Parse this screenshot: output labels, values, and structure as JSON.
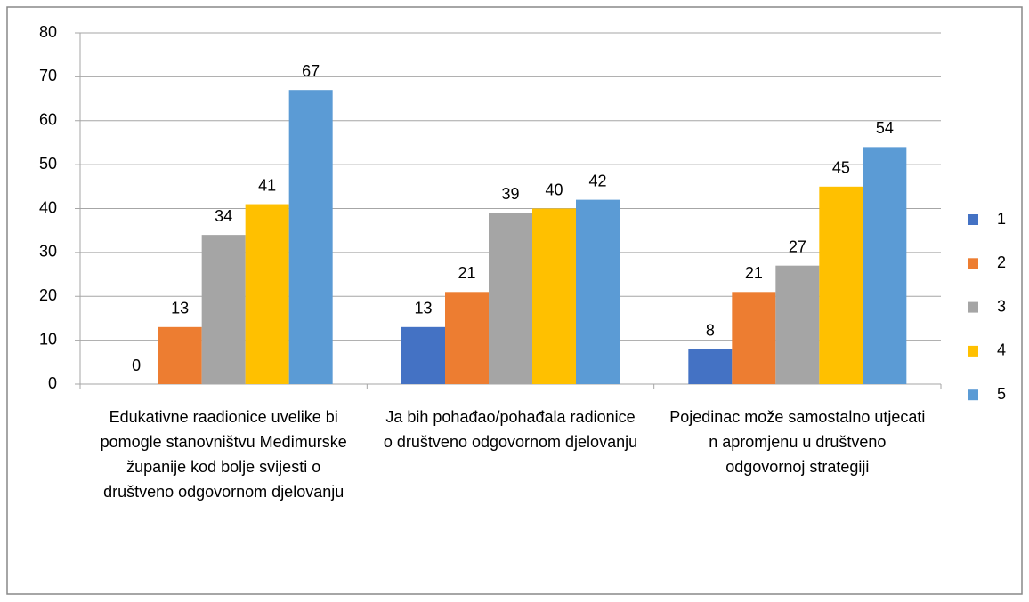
{
  "chart_data": {
    "type": "bar",
    "categories": [
      "Edukativne raadionice uvelike bi pomogle stanovništvu Međimurske županije kod bolje svijesti o društveno odgovornom djelovanju",
      "Ja bih pohađao/pohađala radionice o društveno odgovornom djelovanju",
      "Pojedinac može samostalno utjecati n apromjenu u društveno odgovornoj strategiji"
    ],
    "series": [
      {
        "name": "1",
        "color": "#4472c4",
        "values": [
          0,
          13,
          8
        ]
      },
      {
        "name": "2",
        "color": "#ed7d31",
        "values": [
          13,
          21,
          21
        ]
      },
      {
        "name": "3",
        "color": "#a5a5a5",
        "values": [
          34,
          39,
          27
        ]
      },
      {
        "name": "4",
        "color": "#ffc000",
        "values": [
          41,
          40,
          45
        ]
      },
      {
        "name": "5",
        "color": "#5b9bd5",
        "values": [
          67,
          42,
          54
        ]
      }
    ],
    "ylim": [
      0,
      80
    ],
    "yticks": [
      0,
      10,
      20,
      30,
      40,
      50,
      60,
      70,
      80
    ],
    "grid": true,
    "legend": "right"
  }
}
